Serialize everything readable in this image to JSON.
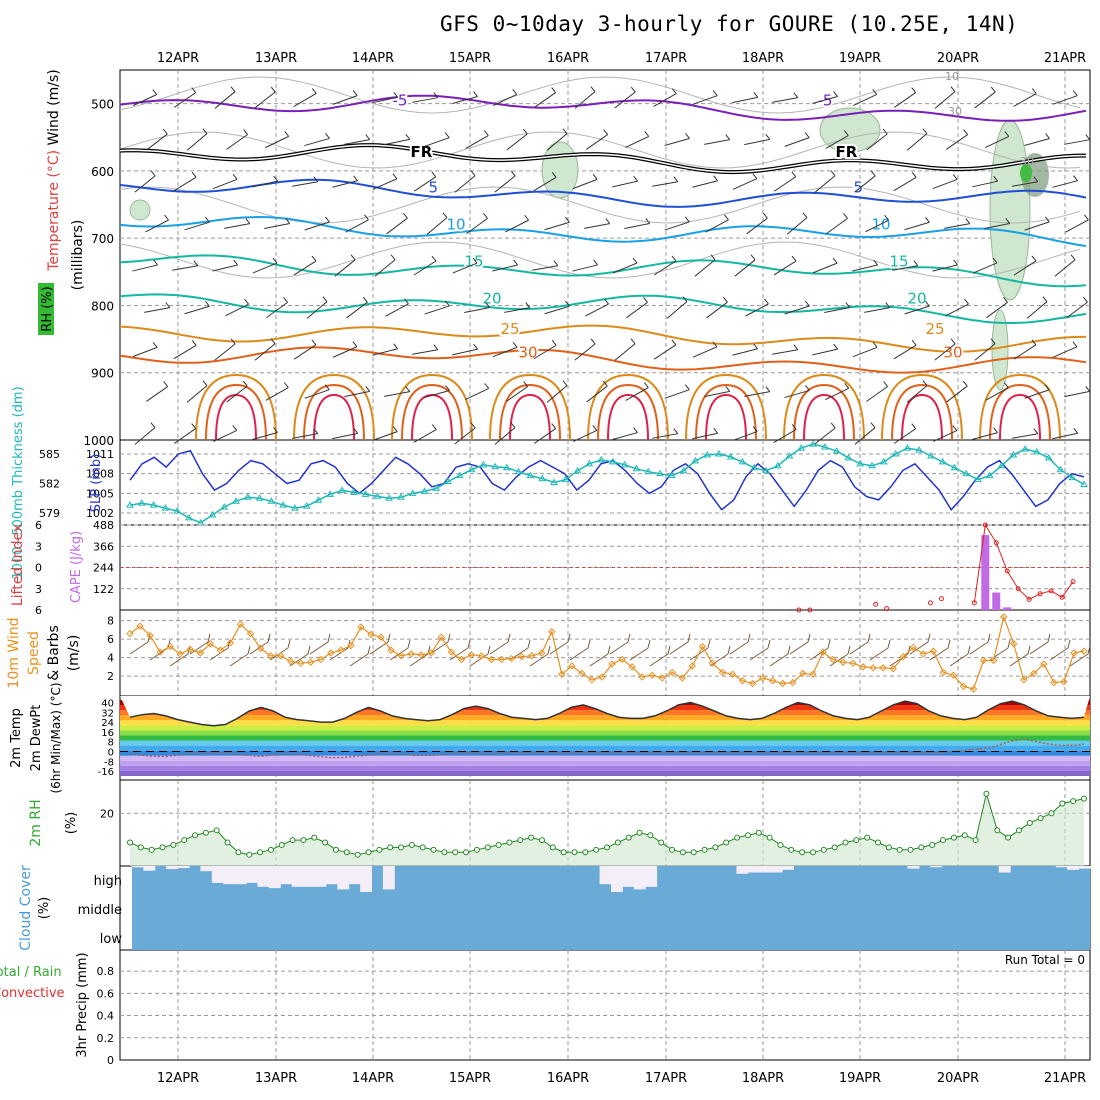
{
  "title": "GFS 0~10day 3-hourly for GOURE (10.25E, 14N)",
  "dates": [
    "12APR",
    "13APR",
    "14APR",
    "15APR",
    "16APR",
    "17APR",
    "18APR",
    "19APR",
    "20APR",
    "21APR"
  ],
  "colors": {
    "grid": "#9a9a9a",
    "freezing": "#000000",
    "cold": "#7a1fb8",
    "cool": "#1f4fd6",
    "mild": "#19a0e6",
    "warm": "#14b8a0",
    "warmer": "#1db84f",
    "hot": "#dc8b1a",
    "hotter": "#e0601a",
    "hottest": "#e02048",
    "rh_fill": "#cfe6cf",
    "slp": "#2233cc",
    "thickness": "#20b8b8",
    "cape": "#c06ae6",
    "lifted": "#e02020",
    "wind10m": "#e89020",
    "cloud": "#6aaad6",
    "precip": "#33aa33"
  },
  "chart_data": [
    {
      "panel": "upper_air",
      "type": "contour",
      "ylabels": [
        "Wind (m/s)",
        "Temperature (°C)",
        "RH (%)",
        "(millibars)"
      ],
      "yticks": [
        500,
        600,
        700,
        800,
        900,
        1000
      ],
      "ylim": [
        450,
        1000
      ],
      "contour_labels": [
        "-5",
        "FR",
        "5",
        "10",
        "15",
        "20",
        "25",
        "30"
      ],
      "isotherms": [
        {
          "label": "-5",
          "level": 495,
          "color_key": "cold"
        },
        {
          "label": "FR",
          "level": 572,
          "color_key": "freezing"
        },
        {
          "label": "5",
          "level": 625,
          "color_key": "cool"
        },
        {
          "label": "10",
          "level": 680,
          "color_key": "mild"
        },
        {
          "label": "15",
          "level": 735,
          "color_key": "warm"
        },
        {
          "label": "20",
          "level": 790,
          "color_key": "warm"
        },
        {
          "label": "25",
          "level": 835,
          "color_key": "hot"
        },
        {
          "label": "30",
          "level": 870,
          "color_key": "hotter"
        }
      ],
      "rh_labels": [
        "10",
        "30",
        "30"
      ]
    },
    {
      "panel": "slp_thickness",
      "type": "line",
      "ylabels": [
        "1000~500mb Thickness (dm)",
        "SLP (mb)"
      ],
      "left_ticks": [
        585,
        582,
        579
      ],
      "right_ticks": [
        1011,
        1008,
        1005,
        1002
      ],
      "series": [
        {
          "name": "SLP",
          "color_key": "slp",
          "values": [
            1007,
            1009.5,
            1010.5,
            1009,
            1011,
            1011.5,
            1008,
            1005.5,
            1006.5,
            1008.5,
            1010,
            1009.5,
            1008,
            1006.5,
            1007,
            1009.5,
            1010,
            1009,
            1006.5,
            1005,
            1006.5,
            1008.5,
            1010.5,
            1009.5,
            1008,
            1006,
            1006.5,
            1009,
            1009.5,
            1009,
            1006.5,
            1005.5,
            1007.5,
            1009,
            1010,
            1009,
            1008,
            1005.5,
            1007,
            1009.5,
            1010,
            1008.5,
            1006.5,
            1005,
            1006,
            1008.5,
            1009.5,
            1008,
            1005,
            1002.5,
            1004,
            1007.5,
            1009.5,
            1008,
            1005.5,
            1003,
            1005.5,
            1008.5,
            1010,
            1009,
            1006,
            1004.5,
            1004,
            1006,
            1008.5,
            1009.5,
            1007.5,
            1005.5,
            1002.5,
            1004.5,
            1007,
            1009,
            1010,
            1008,
            1005.5,
            1003,
            1004,
            1006.5,
            1008,
            1007.5
          ]
        },
        {
          "name": "Thickness",
          "color_key": "thickness",
          "values": [
            579.8,
            580,
            579.8,
            579.5,
            579.2,
            578.5,
            578,
            578.8,
            579.6,
            580.2,
            580.6,
            580.5,
            580.2,
            579.8,
            579.5,
            579.7,
            580.3,
            580.9,
            581.3,
            581.1,
            580.9,
            580.7,
            580.5,
            580.6,
            581,
            581.2,
            581.5,
            582.2,
            582.8,
            583.4,
            583.9,
            583.7,
            583.6,
            583.2,
            582.8,
            582.5,
            582.1,
            582.4,
            583.3,
            584,
            584.4,
            584.2,
            583.9,
            583.5,
            583.2,
            583,
            582.8,
            583.3,
            584.3,
            584.9,
            585,
            584.7,
            584.2,
            583.6,
            583.3,
            583.8,
            584.8,
            585.6,
            586,
            585.7,
            585.3,
            584.6,
            584,
            583.8,
            584.2,
            585,
            585.6,
            585.4,
            584.8,
            584.2,
            583.6,
            583,
            582.4,
            582.8,
            583.8,
            584.9,
            585.5,
            585.2,
            584.6,
            583.4,
            582.6,
            581.9
          ]
        }
      ]
    },
    {
      "panel": "stability",
      "type": "bar",
      "ylabels": [
        "Lifted Index",
        "CAPE (J/kg)"
      ],
      "left_ticks": [
        -6,
        -3,
        0,
        3,
        6
      ],
      "right_ticks": [
        488,
        366,
        244,
        122
      ],
      "cape_bars": [
        {
          "x": 78,
          "value": 430
        },
        {
          "x": 79,
          "value": 100
        },
        {
          "x": 80,
          "value": 15
        }
      ],
      "lifted_index_points": [
        {
          "x": 61,
          "value": 6
        },
        {
          "x": 62,
          "value": 6
        },
        {
          "x": 68,
          "value": 5.2
        },
        {
          "x": 69,
          "value": 5.8
        },
        {
          "x": 73,
          "value": 5
        },
        {
          "x": 74,
          "value": 4.4
        },
        {
          "x": 77,
          "value": 5
        },
        {
          "x": 78,
          "value": -6
        },
        {
          "x": 79,
          "value": -3.5
        },
        {
          "x": 80,
          "value": 0.5
        },
        {
          "x": 81,
          "value": 3
        },
        {
          "x": 82,
          "value": 4.5
        },
        {
          "x": 83,
          "value": 3.7
        },
        {
          "x": 84,
          "value": 3.3
        },
        {
          "x": 85,
          "value": 4.2
        },
        {
          "x": 86,
          "value": 2
        }
      ]
    },
    {
      "panel": "wind10m",
      "type": "line",
      "ylabels": [
        "10m Wind",
        "Speed",
        "& Barbs",
        "(m/s)"
      ],
      "yticks": [
        2,
        4,
        6,
        8
      ],
      "series": [
        {
          "name": "10m Wind Speed",
          "color_key": "wind10m",
          "values": [
            6.6,
            7.4,
            6.4,
            4.6,
            5.2,
            4.4,
            4.9,
            4.5,
            5.5,
            4.8,
            5.6,
            7.6,
            6.6,
            5.0,
            4.2,
            4.2,
            3.6,
            3.4,
            3.5,
            3.8,
            4.5,
            4.8,
            5.3,
            7.3,
            6.5,
            6.2,
            4.8,
            4.2,
            4.4,
            4.3,
            4.5,
            6.2,
            4.6,
            3.8,
            4.3,
            4.2,
            3.8,
            3.8,
            3.9,
            4.1,
            4.2,
            4.5,
            6.8,
            2.2,
            3.1,
            2.3,
            1.6,
            1.9,
            3.3,
            3.8,
            3.0,
            1.9,
            2.1,
            1.8,
            2.4,
            1.8,
            3.1,
            5.2,
            3.4,
            2.4,
            2.2,
            1.5,
            1.2,
            1.8,
            1.5,
            1.2,
            1.3,
            2.3,
            2.2,
            4.6,
            3.8,
            3.5,
            3.4,
            3.0,
            2.9,
            2.9,
            2.8,
            4.1,
            5.1,
            4.4,
            4.7,
            2.4,
            2.1,
            0.9,
            0.6,
            3.7,
            3.7,
            8.4,
            5.5,
            1.6,
            2.3,
            3.3,
            1.3,
            1.4,
            4.5,
            4.7
          ]
        }
      ]
    },
    {
      "panel": "temperature",
      "type": "area",
      "ylabels": [
        "2m Temp",
        "2m DewPt",
        "(6hr Min/Max) (°C)"
      ],
      "yticks": [
        40,
        32,
        24,
        16,
        8,
        0,
        -8,
        -16
      ],
      "series": [
        {
          "name": "2m Temp",
          "values": [
            28,
            30,
            31,
            29,
            26,
            24,
            22,
            21,
            22,
            27,
            33,
            36,
            33,
            28,
            26,
            25,
            24,
            24,
            27,
            32,
            36,
            33,
            29,
            27,
            26,
            25,
            26,
            30,
            35,
            37,
            35,
            31,
            28,
            27,
            26,
            27,
            31,
            36,
            38,
            35,
            31,
            28,
            27,
            27,
            29,
            33,
            38,
            40,
            37,
            33,
            29,
            27,
            26,
            27,
            31,
            36,
            40,
            38,
            33,
            29,
            27,
            26,
            28,
            33,
            38,
            41,
            39,
            33,
            29,
            27,
            26,
            28,
            34,
            39,
            41,
            38,
            33,
            29,
            28,
            27,
            28
          ]
        },
        {
          "name": "2m DewPt",
          "values": [
            -2,
            -3,
            -4,
            -4,
            -3,
            -2,
            -2,
            -1,
            -1,
            -2,
            -3,
            -4,
            -3,
            -2,
            -2,
            -3,
            -4,
            -5,
            -5,
            -4,
            -3,
            -2,
            -2,
            -2,
            -3,
            -3,
            -3,
            -2,
            -1,
            -1,
            -2,
            -2,
            -1,
            -1,
            -1,
            -1,
            -1,
            -1,
            -1,
            -1,
            -1,
            -1,
            -1,
            -1,
            -1,
            -1,
            -1,
            -1,
            -1,
            -1,
            -1,
            -1,
            -1,
            -1,
            -1,
            -1,
            -1,
            -1,
            -1,
            -1,
            -1,
            -1,
            -1,
            -1,
            -1,
            -1,
            -1,
            -1,
            -1,
            -1,
            0,
            1,
            2,
            3,
            6,
            9,
            10,
            8,
            6,
            5,
            5,
            6
          ]
        }
      ]
    },
    {
      "panel": "rh2m",
      "type": "area",
      "ylabels": [
        "2m RH",
        "(%)"
      ],
      "yticks": [
        20
      ],
      "series": [
        {
          "name": "2m RH",
          "color_key": "rh_fill",
          "values": [
            8,
            6,
            5,
            6,
            7,
            9,
            11,
            12,
            13,
            8,
            4,
            3,
            4,
            5,
            7,
            9,
            9,
            10,
            8,
            5,
            4,
            3,
            4,
            5,
            6,
            6,
            7,
            6,
            5,
            4,
            4,
            4,
            5,
            6,
            7,
            8,
            9,
            10,
            9,
            6,
            4,
            4,
            4,
            5,
            6,
            8,
            10,
            12,
            11,
            8,
            5,
            4,
            4,
            5,
            6,
            8,
            10,
            11,
            12,
            10,
            7,
            5,
            4,
            4,
            5,
            6,
            8,
            9,
            10,
            8,
            6,
            5,
            5,
            6,
            7,
            9,
            10,
            11,
            9,
            28,
            13,
            10,
            13,
            16,
            18,
            20,
            24,
            25,
            26
          ]
        }
      ]
    },
    {
      "panel": "cloud",
      "type": "bar",
      "ylabels": [
        "Cloud Cover",
        "(%)"
      ],
      "levels": [
        "high",
        "middle",
        "low"
      ],
      "high": [
        95,
        82,
        100,
        88,
        92,
        100,
        80,
        35,
        30,
        30,
        35,
        20,
        15,
        30,
        20,
        20,
        20,
        30,
        10,
        30,
        0,
        100,
        10,
        100,
        100,
        100,
        100,
        100,
        100,
        100,
        100,
        100,
        100,
        100,
        100,
        100,
        100,
        100,
        100,
        100,
        100,
        30,
        0,
        20,
        10,
        20,
        100,
        100,
        100,
        100,
        100,
        100,
        100,
        70,
        75,
        75,
        75,
        85,
        100,
        100,
        100,
        100,
        100,
        100,
        100,
        100,
        100,
        100,
        90,
        100,
        95,
        100,
        100,
        100,
        100,
        100,
        75,
        100,
        100,
        100,
        100,
        95,
        85,
        90
      ]
    },
    {
      "panel": "precip",
      "type": "bar",
      "ylabels": [
        "3hr Precip (mm)"
      ],
      "side_labels": [
        "Total / Rain",
        "Convective"
      ],
      "yticks": [
        0,
        0.2,
        0.4,
        0.6,
        0.8
      ],
      "run_total": "Run Total = 0",
      "values": []
    }
  ]
}
